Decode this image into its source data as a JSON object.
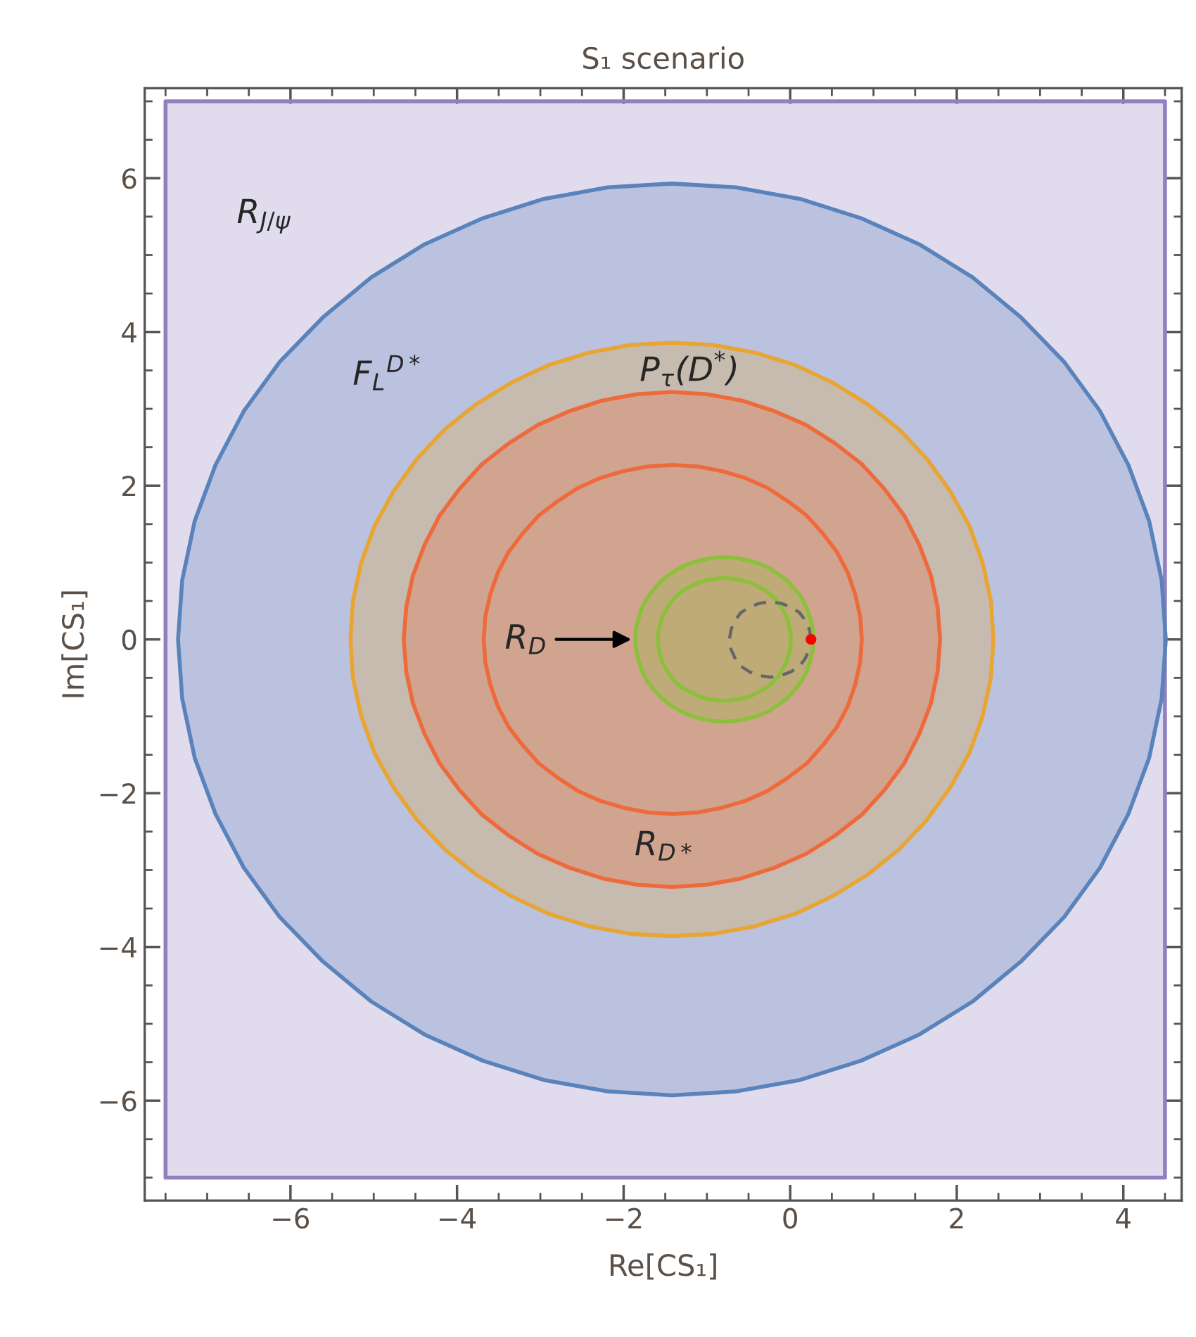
{
  "chart_data": {
    "type": "area",
    "title": "S₁ scenario",
    "xlabel": "Re[CS₁]",
    "ylabel": "Im[CS₁]",
    "xlim": [
      -7.75,
      4.7
    ],
    "ylim": [
      -7.3,
      7.17
    ],
    "xticks": [
      -6,
      -4,
      -2,
      0,
      2,
      4
    ],
    "yticks": [
      -6,
      -4,
      -2,
      0,
      2,
      4,
      6
    ],
    "grid": false,
    "legend": false,
    "series": [
      {
        "color": "#8f80c0",
        "x": [
          -7.5,
          4.5,
          4.5,
          -7.5
        ],
        "values": [
          -7,
          -7,
          7,
          7
        ]
      },
      {
        "color": "#5a82bb",
        "x": [
          4.51,
          4.46,
          4.31,
          4.06,
          3.72,
          3.29,
          2.77,
          2.19,
          1.55,
          0.85,
          0.12,
          -0.65,
          -1.42,
          -2.19,
          -2.96,
          -3.69,
          -4.39,
          -5.03,
          -5.61,
          -6.13,
          -6.56,
          -6.9,
          -7.15,
          -7.3,
          -7.35,
          -7.3,
          -7.15,
          -6.9,
          -6.56,
          -6.13,
          -5.61,
          -5.03,
          -4.39,
          -3.69,
          -2.96,
          -2.19,
          -1.42,
          -0.65,
          0.12,
          0.85,
          1.55,
          2.19,
          2.77,
          3.29,
          3.72,
          4.06,
          4.31,
          4.46
        ],
        "values": [
          0,
          0.77,
          1.54,
          2.27,
          2.97,
          3.61,
          4.19,
          4.71,
          5.14,
          5.48,
          5.73,
          5.88,
          5.93,
          5.88,
          5.73,
          5.48,
          5.14,
          4.71,
          4.19,
          3.61,
          2.97,
          2.27,
          1.54,
          0.77,
          0,
          -0.77,
          -1.54,
          -2.27,
          -2.97,
          -3.61,
          -4.19,
          -4.71,
          -5.14,
          -5.48,
          -5.73,
          -5.88,
          -5.93,
          -5.88,
          -5.73,
          -5.48,
          -5.14,
          -4.71,
          -4.19,
          -3.61,
          -2.97,
          -2.27,
          -1.54,
          -0.77
        ]
      },
      {
        "color": "#e8a532",
        "x": [
          2.44,
          2.41,
          2.31,
          2.15,
          1.92,
          1.64,
          1.31,
          0.93,
          0.51,
          0.06,
          -0.42,
          -0.92,
          -1.42,
          -1.92,
          -2.42,
          -2.9,
          -3.35,
          -3.77,
          -4.15,
          -4.48,
          -4.76,
          -4.99,
          -5.15,
          -5.25,
          -5.28,
          -5.25,
          -5.15,
          -4.99,
          -4.76,
          -4.48,
          -4.15,
          -3.77,
          -3.35,
          -2.9,
          -2.42,
          -1.92,
          -1.42,
          -0.92,
          -0.42,
          0.06,
          0.51,
          0.93,
          1.31,
          1.64,
          1.92,
          2.15,
          2.31,
          2.41
        ],
        "values": [
          0,
          0.5,
          1.0,
          1.48,
          1.93,
          2.35,
          2.73,
          3.06,
          3.34,
          3.57,
          3.73,
          3.83,
          3.86,
          3.83,
          3.73,
          3.57,
          3.34,
          3.06,
          2.73,
          2.35,
          1.93,
          1.48,
          1.0,
          0.5,
          0,
          -0.5,
          -1.0,
          -1.48,
          -1.93,
          -2.35,
          -2.73,
          -3.06,
          -3.34,
          -3.57,
          -3.73,
          -3.83,
          -3.86,
          -3.83,
          -3.73,
          -3.57,
          -3.34,
          -3.06,
          -2.73,
          -2.35,
          -1.93,
          -1.48,
          -1.0,
          -0.5
        ]
      },
      {
        "color": "#ee6a3c",
        "x": [
          1.8,
          1.77,
          1.69,
          1.55,
          1.37,
          1.13,
          0.86,
          0.54,
          0.19,
          -0.19,
          -0.59,
          -1.0,
          -1.42,
          -1.84,
          -2.25,
          -2.65,
          -3.03,
          -3.38,
          -3.7,
          -3.97,
          -4.21,
          -4.39,
          -4.53,
          -4.61,
          -4.64,
          -4.61,
          -4.53,
          -4.39,
          -4.21,
          -3.97,
          -3.7,
          -3.38,
          -3.03,
          -2.65,
          -2.25,
          -1.84,
          -1.42,
          -1.0,
          -0.59,
          -0.19,
          0.19,
          0.54,
          0.86,
          1.13,
          1.37,
          1.55,
          1.69,
          1.77,
          null,
          0.86,
          0.84,
          0.78,
          0.69,
          0.56,
          0.39,
          0.2,
          -0.03,
          -0.27,
          -0.54,
          -0.82,
          -1.11,
          -1.41,
          -1.71,
          -2.0,
          -2.28,
          -2.55,
          -2.79,
          -3.02,
          -3.21,
          -3.38,
          -3.51,
          -3.6,
          -3.66,
          -3.68,
          -3.66,
          -3.6,
          -3.51,
          -3.38,
          -3.21,
          -3.02,
          -2.79,
          -2.55,
          -2.28,
          -2.0,
          -1.71,
          -1.41,
          -1.11,
          -0.82,
          -0.54,
          -0.27,
          -0.03,
          0.2,
          0.39,
          0.56,
          0.69,
          0.78,
          0.84
        ],
        "values": [
          0,
          0.42,
          0.83,
          1.23,
          1.61,
          1.96,
          2.28,
          2.55,
          2.79,
          2.97,
          3.11,
          3.19,
          3.22,
          3.19,
          3.11,
          2.97,
          2.79,
          2.55,
          2.28,
          1.96,
          1.61,
          1.23,
          0.83,
          0.42,
          0,
          -0.42,
          -0.83,
          -1.23,
          -1.61,
          -1.96,
          -2.28,
          -2.55,
          -2.79,
          -2.97,
          -3.11,
          -3.19,
          -3.22,
          -3.19,
          -3.11,
          -2.97,
          -2.79,
          -2.55,
          -2.28,
          -1.96,
          -1.61,
          -1.23,
          -0.83,
          -0.42,
          null,
          0,
          0.3,
          0.59,
          0.87,
          1.14,
          1.38,
          1.61,
          1.8,
          1.97,
          2.1,
          2.19,
          2.25,
          2.27,
          2.25,
          2.19,
          2.1,
          1.97,
          1.8,
          1.61,
          1.38,
          1.14,
          0.87,
          0.59,
          0.3,
          0,
          -0.3,
          -0.59,
          -0.87,
          -1.14,
          -1.38,
          -1.61,
          -1.8,
          -1.97,
          -2.1,
          -2.19,
          -2.25,
          -2.27,
          -2.25,
          -2.19,
          -2.1,
          -1.97,
          -1.8,
          -1.61,
          -1.38,
          -1.14,
          -0.87,
          -0.59,
          -0.3
        ]
      },
      {
        "color": "#8cc03c",
        "x": [
          0.28,
          0.27,
          0.24,
          0.2,
          0.14,
          0.06,
          -0.03,
          -0.14,
          -0.25,
          -0.38,
          -0.51,
          -0.65,
          -0.79,
          -0.93,
          -1.07,
          -1.2,
          -1.33,
          -1.44,
          -1.55,
          -1.64,
          -1.72,
          -1.78,
          -1.82,
          -1.85,
          -1.86,
          -1.85,
          -1.82,
          -1.78,
          -1.72,
          -1.64,
          -1.55,
          -1.44,
          -1.33,
          -1.2,
          -1.07,
          -0.93,
          -0.79,
          -0.65,
          -0.51,
          -0.38,
          -0.25,
          -0.14,
          -0.03,
          0.06,
          0.14,
          0.2,
          0.24,
          0.27,
          null,
          0.01,
          0,
          -0.02,
          -0.05,
          -0.1,
          -0.15,
          -0.22,
          -0.3,
          -0.39,
          -0.48,
          -0.58,
          -0.69,
          -0.79,
          -0.89,
          -1.0,
          -1.1,
          -1.19,
          -1.28,
          -1.36,
          -1.43,
          -1.48,
          -1.53,
          -1.56,
          -1.58,
          -1.59,
          -1.58,
          -1.56,
          -1.53,
          -1.48,
          -1.43,
          -1.36,
          -1.28,
          -1.19,
          -1.1,
          -1.0,
          -0.89,
          -0.79,
          -0.69,
          -0.58,
          -0.48,
          -0.39,
          -0.3,
          -0.22,
          -0.15,
          -0.1,
          -0.05,
          -0.02,
          0
        ],
        "values": [
          0,
          0.14,
          0.28,
          0.41,
          0.54,
          0.65,
          0.76,
          0.85,
          0.93,
          0.99,
          1.03,
          1.06,
          1.07,
          1.06,
          1.03,
          0.99,
          0.93,
          0.85,
          0.76,
          0.65,
          0.54,
          0.41,
          0.28,
          0.14,
          0,
          -0.14,
          -0.28,
          -0.41,
          -0.54,
          -0.65,
          -0.76,
          -0.85,
          -0.93,
          -0.99,
          -1.03,
          -1.06,
          -1.07,
          -1.06,
          -1.03,
          -0.99,
          -0.93,
          -0.85,
          -0.76,
          -0.65,
          -0.54,
          -0.41,
          -0.28,
          -0.14,
          null,
          0,
          0.1,
          0.21,
          0.31,
          0.4,
          0.49,
          0.57,
          0.64,
          0.69,
          0.74,
          0.77,
          0.79,
          0.8,
          0.79,
          0.77,
          0.74,
          0.69,
          0.64,
          0.57,
          0.49,
          0.4,
          0.31,
          0.21,
          0.1,
          0,
          -0.1,
          -0.21,
          -0.31,
          -0.4,
          -0.49,
          -0.57,
          -0.64,
          -0.69,
          -0.74,
          -0.77,
          -0.79,
          -0.8,
          -0.79,
          -0.77,
          -0.74,
          -0.69,
          -0.64,
          -0.57,
          -0.49,
          -0.4,
          -0.31,
          -0.21,
          -0.1
        ]
      },
      {
        "type": "line",
        "line_style": "dashed",
        "color": "#666666",
        "x": [
          0.25,
          0.23,
          0.18,
          0.11,
          0.01,
          -0.11,
          -0.24,
          -0.37,
          -0.49,
          -0.59,
          -0.66,
          -0.71,
          -0.73,
          -0.71,
          -0.66,
          -0.59,
          -0.49,
          -0.37,
          -0.24,
          -0.11,
          0.01,
          0.11,
          0.18,
          0.23
        ],
        "values": [
          0,
          0.13,
          0.25,
          0.35,
          0.42,
          0.47,
          0.49,
          0.47,
          0.42,
          0.35,
          0.25,
          0.13,
          0,
          -0.13,
          -0.25,
          -0.35,
          -0.42,
          -0.47,
          -0.49,
          -0.47,
          -0.42,
          -0.35,
          -0.25,
          -0.13
        ]
      },
      {
        "type": "scatter",
        "marker": "circle",
        "color": "#ff0000",
        "x": [
          0.25
        ],
        "values": [
          0
        ]
      }
    ],
    "annotations": [
      "R$_{J/ψ}$",
      {
        "text": "F$_{L}$$^{D*}$",
        "x": -5.61,
        "y": 4.19
      },
      {
        "text": "P$_{τ}$(D$^{*}$)",
        "x": -1.42,
        "y": 3.86
      },
      {
        "text": "R$_{D*}$",
        "x": -1.42,
        "y": -3.22
      },
      {
        "text": "R$_{D}$",
        "x": -1.86,
        "y": 0
      }
    ]
  }
}
